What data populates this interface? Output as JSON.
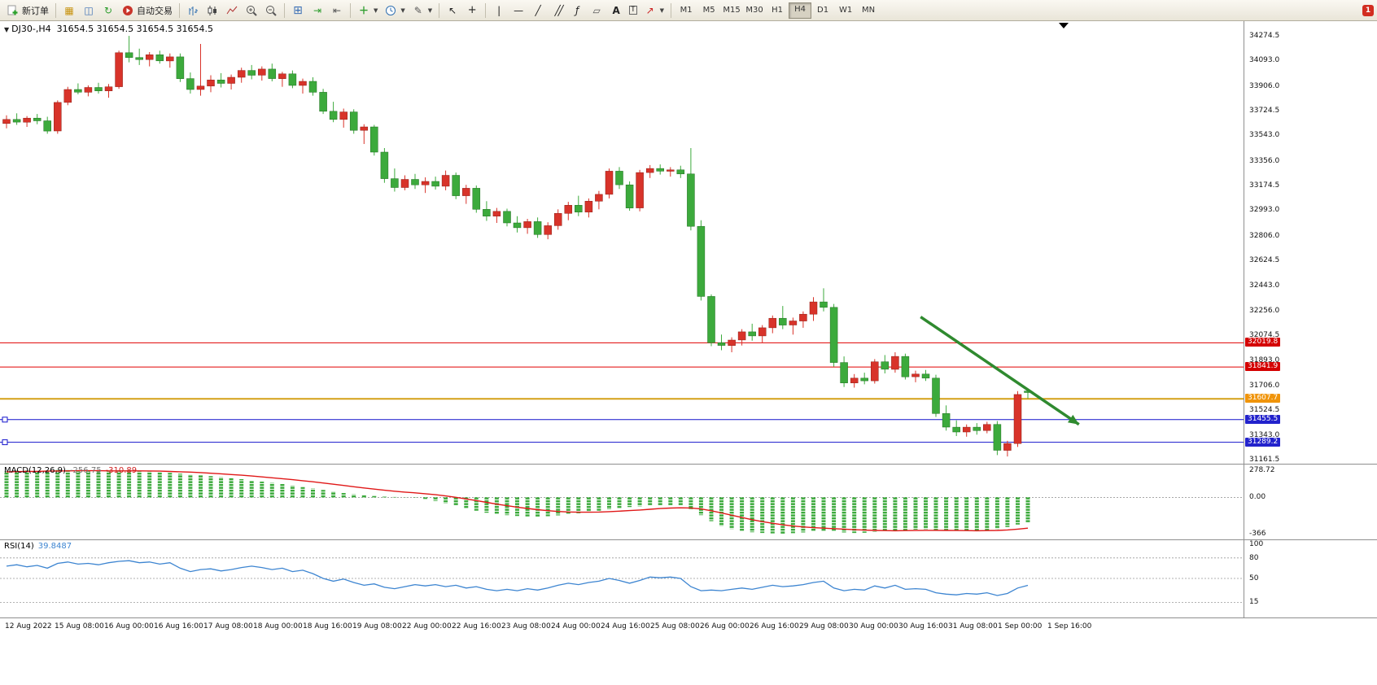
{
  "window": {
    "badge": "1"
  },
  "toolbar": {
    "new_order": "新订单",
    "auto_trading": "自动交易",
    "timeframe_buttons": [
      "M1",
      "M5",
      "M15",
      "M30",
      "H1",
      "H4",
      "D1",
      "W1",
      "MN"
    ],
    "active_timeframe": "H4"
  },
  "chart": {
    "symbol_period": "DJ30-,H4",
    "ohlc_text": "31654.5 31654.5 31654.5 31654.5"
  },
  "macd_panel": {
    "label": "MACD(12,26,9)",
    "value": "-256.75",
    "signal_value": "-310.89",
    "scale": [
      "278.72",
      "0.00",
      "-366"
    ]
  },
  "rsi_panel": {
    "label": "RSI(14)",
    "value": "39.8487",
    "scale": [
      "100",
      "80",
      "50",
      "15"
    ]
  },
  "price_axis": [
    "34274.5",
    "34093.0",
    "33906.0",
    "33724.5",
    "33543.0",
    "33356.0",
    "33174.5",
    "32993.0",
    "32806.0",
    "32624.5",
    "32443.0",
    "32256.0",
    "32074.5",
    "31893.0",
    "31706.0",
    "31524.5",
    "31343.0",
    "31161.5"
  ],
  "time_axis": [
    "12 Aug 2022",
    "15 Aug 08:00",
    "16 Aug 00:00",
    "16 Aug 16:00",
    "17 Aug 08:00",
    "18 Aug 00:00",
    "18 Aug 16:00",
    "19 Aug 08:00",
    "22 Aug 00:00",
    "22 Aug 16:00",
    "23 Aug 08:00",
    "24 Aug 00:00",
    "24 Aug 16:00",
    "25 Aug 08:00",
    "26 Aug 00:00",
    "26 Aug 16:00",
    "29 Aug 08:00",
    "30 Aug 00:00",
    "30 Aug 16:00",
    "31 Aug 08:00",
    "1 Sep 00:00",
    "1 Sep 16:00"
  ],
  "chart_data": {
    "type": "candlestick",
    "symbol": "DJ30-,H4",
    "price_range": [
      31161.5,
      34274.5
    ],
    "colors": {
      "bull": "#d8332a",
      "bear": "#3caa3c",
      "bull_edge": "#8f1d14",
      "bear_edge": "#1e6f1e",
      "macd_histogram": "#3caa3c",
      "macd_signal": "#e01818",
      "rsi_line": "#3d85d1",
      "arrow": "#2f8a2f"
    },
    "candles": [
      [
        33630,
        33690,
        33595,
        33660
      ],
      [
        33660,
        33705,
        33620,
        33640
      ],
      [
        33640,
        33685,
        33605,
        33670
      ],
      [
        33670,
        33700,
        33625,
        33650
      ],
      [
        33650,
        33680,
        33555,
        33575
      ],
      [
        33575,
        33800,
        33555,
        33785
      ],
      [
        33785,
        33900,
        33765,
        33880
      ],
      [
        33880,
        33925,
        33845,
        33860
      ],
      [
        33860,
        33910,
        33830,
        33895
      ],
      [
        33895,
        33930,
        33850,
        33870
      ],
      [
        33870,
        33920,
        33820,
        33900
      ],
      [
        33900,
        34165,
        33885,
        34150
      ],
      [
        34150,
        34274,
        34080,
        34115
      ],
      [
        34115,
        34180,
        34060,
        34100
      ],
      [
        34100,
        34155,
        34050,
        34135
      ],
      [
        34135,
        34165,
        34070,
        34090
      ],
      [
        34090,
        34145,
        34040,
        34120
      ],
      [
        34120,
        34145,
        33935,
        33960
      ],
      [
        33960,
        34005,
        33850,
        33880
      ],
      [
        33880,
        34215,
        33835,
        33905
      ],
      [
        33905,
        33985,
        33860,
        33950
      ],
      [
        33950,
        34000,
        33895,
        33925
      ],
      [
        33925,
        33990,
        33880,
        33970
      ],
      [
        33970,
        34040,
        33930,
        34020
      ],
      [
        34020,
        34060,
        33955,
        33985
      ],
      [
        33985,
        34050,
        33945,
        34030
      ],
      [
        34030,
        34070,
        33940,
        33960
      ],
      [
        33960,
        34010,
        33900,
        33995
      ],
      [
        33995,
        34020,
        33890,
        33910
      ],
      [
        33910,
        33960,
        33850,
        33940
      ],
      [
        33940,
        33970,
        33835,
        33860
      ],
      [
        33860,
        33885,
        33700,
        33720
      ],
      [
        33720,
        33790,
        33640,
        33660
      ],
      [
        33660,
        33740,
        33600,
        33715
      ],
      [
        33715,
        33735,
        33555,
        33580
      ],
      [
        33580,
        33625,
        33480,
        33605
      ],
      [
        33605,
        33620,
        33395,
        33420
      ],
      [
        33420,
        33450,
        33195,
        33225
      ],
      [
        33225,
        33300,
        33130,
        33160
      ],
      [
        33160,
        33250,
        33140,
        33220
      ],
      [
        33220,
        33260,
        33150,
        33180
      ],
      [
        33180,
        33235,
        33120,
        33205
      ],
      [
        33205,
        33240,
        33145,
        33170
      ],
      [
        33170,
        33285,
        33140,
        33250
      ],
      [
        33250,
        33270,
        33075,
        33100
      ],
      [
        33100,
        33180,
        33040,
        33155
      ],
      [
        33155,
        33175,
        32975,
        33000
      ],
      [
        33000,
        33060,
        32915,
        32950
      ],
      [
        32950,
        33010,
        32900,
        32985
      ],
      [
        32985,
        33005,
        32875,
        32900
      ],
      [
        32900,
        32950,
        32830,
        32865
      ],
      [
        32865,
        32930,
        32820,
        32910
      ],
      [
        32910,
        32940,
        32790,
        32815
      ],
      [
        32815,
        32905,
        32780,
        32880
      ],
      [
        32880,
        33000,
        32850,
        32970
      ],
      [
        32970,
        33055,
        32920,
        33030
      ],
      [
        33030,
        33100,
        32950,
        32980
      ],
      [
        32980,
        33080,
        32940,
        33060
      ],
      [
        33060,
        33135,
        33000,
        33110
      ],
      [
        33110,
        33300,
        33080,
        33280
      ],
      [
        33280,
        33310,
        33150,
        33180
      ],
      [
        33180,
        33205,
        32990,
        33010
      ],
      [
        33010,
        33290,
        32985,
        33270
      ],
      [
        33270,
        33325,
        33230,
        33300
      ],
      [
        33300,
        33330,
        33255,
        33280
      ],
      [
        33280,
        33310,
        33240,
        33290
      ],
      [
        33290,
        33320,
        33230,
        33260
      ],
      [
        33260,
        33450,
        32845,
        32875
      ],
      [
        32875,
        32920,
        32330,
        32360
      ],
      [
        32360,
        32375,
        31995,
        32020
      ],
      [
        32020,
        32080,
        31965,
        32000
      ],
      [
        32000,
        32060,
        31950,
        32040
      ],
      [
        32040,
        32120,
        32000,
        32100
      ],
      [
        32100,
        32160,
        32035,
        32070
      ],
      [
        32070,
        32150,
        32020,
        32130
      ],
      [
        32130,
        32220,
        32090,
        32200
      ],
      [
        32200,
        32290,
        32120,
        32150
      ],
      [
        32150,
        32205,
        32080,
        32180
      ],
      [
        32180,
        32250,
        32130,
        32230
      ],
      [
        32230,
        32355,
        32180,
        32320
      ],
      [
        32320,
        32420,
        32250,
        32280
      ],
      [
        32280,
        32305,
        31845,
        31875
      ],
      [
        31875,
        31920,
        31695,
        31725
      ],
      [
        31725,
        31790,
        31690,
        31760
      ],
      [
        31760,
        31800,
        31715,
        31740
      ],
      [
        31740,
        31900,
        31720,
        31880
      ],
      [
        31880,
        31930,
        31795,
        31825
      ],
      [
        31825,
        31950,
        31800,
        31920
      ],
      [
        31920,
        31940,
        31750,
        31770
      ],
      [
        31770,
        31815,
        31730,
        31790
      ],
      [
        31790,
        31820,
        31740,
        31760
      ],
      [
        31760,
        31785,
        31475,
        31500
      ],
      [
        31500,
        31560,
        31375,
        31400
      ],
      [
        31400,
        31450,
        31335,
        31365
      ],
      [
        31365,
        31420,
        31330,
        31400
      ],
      [
        31400,
        31430,
        31345,
        31375
      ],
      [
        31375,
        31440,
        31355,
        31420
      ],
      [
        31420,
        31445,
        31195,
        31230
      ],
      [
        31230,
        31300,
        31185,
        31280
      ],
      [
        31280,
        31665,
        31255,
        31640
      ],
      [
        31665,
        31685,
        31610,
        31654.5
      ]
    ],
    "hlines": [
      {
        "price": 32019.8,
        "color": "#e00000",
        "width": 1,
        "tag": "32019.8",
        "tag_bg": "#d40000",
        "tag_color": "#ffffff"
      },
      {
        "price": 31841.9,
        "color": "#e00000",
        "width": 1,
        "tag": "31841.9",
        "tag_bg": "#d40000",
        "tag_color": "#ffffff"
      },
      {
        "price": 31607.7,
        "color": "#d4a017",
        "width": 2,
        "tag": "31607.7",
        "tag_bg": "#f0940a",
        "tag_color": "#ffffff"
      },
      {
        "price": 31455.5,
        "color": "#1414cc",
        "width": 1,
        "tag": "31455.5",
        "tag_bg": "#2222cc",
        "tag_color": "#ffffff",
        "handles": true
      },
      {
        "price": 31289.2,
        "color": "#1414cc",
        "width": 1,
        "tag": "31289.2",
        "tag_bg": "#2222cc",
        "tag_color": "#ffffff",
        "handles": true
      }
    ],
    "arrow": {
      "from_bar": 89.5,
      "from_price": 32210,
      "to_bar": 105,
      "to_price": 31420,
      "color": "#2f8a2f"
    },
    "macd": {
      "range": [
        -400,
        300
      ],
      "histogram": [
        265,
        270,
        272,
        268,
        274,
        278,
        276,
        272,
        270,
        268,
        265,
        272,
        275,
        270,
        262,
        255,
        248,
        240,
        232,
        225,
        215,
        205,
        195,
        185,
        172,
        160,
        148,
        135,
        120,
        105,
        90,
        75,
        60,
        45,
        32,
        22,
        14,
        8,
        4,
        2,
        -2,
        -15,
        -35,
        -60,
        -85,
        -110,
        -135,
        -155,
        -170,
        -180,
        -188,
        -192,
        -195,
        -190,
        -182,
        -172,
        -160,
        -148,
        -135,
        -120,
        -108,
        -98,
        -90,
        -85,
        -82,
        -80,
        -85,
        -120,
        -180,
        -240,
        -290,
        -320,
        -340,
        -352,
        -360,
        -364,
        -366,
        -362,
        -355,
        -345,
        -340,
        -345,
        -355,
        -360,
        -358,
        -350,
        -342,
        -335,
        -330,
        -326,
        -322,
        -330,
        -338,
        -342,
        -345,
        -340,
        -332,
        -320,
        -300,
        -275,
        -256.75
      ],
      "signal": [
        258,
        261,
        263,
        264,
        266,
        268,
        269,
        270,
        270,
        270,
        269,
        269,
        269,
        269,
        268,
        266,
        263,
        260,
        256,
        251,
        245,
        239,
        232,
        225,
        217,
        208,
        199,
        190,
        180,
        169,
        158,
        146,
        134,
        121,
        108,
        96,
        84,
        73,
        63,
        54,
        46,
        37,
        27,
        15,
        1,
        -15,
        -32,
        -50,
        -68,
        -84,
        -99,
        -112,
        -124,
        -134,
        -142,
        -147,
        -150,
        -150,
        -148,
        -144,
        -139,
        -133,
        -127,
        -120,
        -113,
        -108,
        -105,
        -107,
        -117,
        -135,
        -157,
        -180,
        -203,
        -225,
        -245,
        -262,
        -277,
        -290,
        -299,
        -306,
        -311,
        -316,
        -321,
        -327,
        -331,
        -334,
        -336,
        -337,
        -336,
        -335,
        -333,
        -333,
        -334,
        -335,
        -336,
        -337,
        -336,
        -334,
        -329,
        -321,
        -310.89
      ]
    },
    "rsi": {
      "levels": [
        80,
        50,
        15
      ],
      "values": [
        68,
        70,
        67,
        69,
        65,
        72,
        74,
        71,
        72,
        70,
        73,
        75,
        76,
        73,
        74,
        71,
        73,
        65,
        60,
        63,
        64,
        61,
        63,
        66,
        68,
        66,
        63,
        65,
        60,
        62,
        57,
        50,
        46,
        49,
        44,
        40,
        42,
        37,
        35,
        38,
        41,
        39,
        41,
        38,
        40,
        36,
        38,
        34,
        32,
        34,
        32,
        35,
        33,
        36,
        40,
        43,
        41,
        44,
        46,
        50,
        47,
        43,
        47,
        52,
        51,
        52,
        50,
        38,
        32,
        33,
        32,
        34,
        36,
        34,
        37,
        40,
        38,
        39,
        41,
        44,
        46,
        36,
        32,
        34,
        33,
        39,
        36,
        40,
        34,
        35,
        34,
        29,
        27,
        26,
        28,
        27,
        29,
        25,
        28,
        36,
        39.85
      ]
    }
  }
}
